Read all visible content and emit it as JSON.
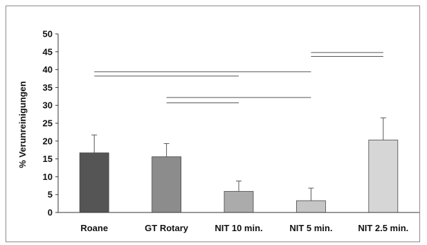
{
  "chart_data": {
    "type": "bar",
    "title": "",
    "xlabel": "",
    "ylabel": "% Verunreinigungen",
    "ylim": [
      0,
      50
    ],
    "yticks": [
      0,
      5,
      10,
      15,
      20,
      25,
      30,
      35,
      40,
      45,
      50
    ],
    "grid": false,
    "legend": "none",
    "categories": [
      "Roane",
      "GT Rotary",
      "NIT 10 min.",
      "NIT 5 min.",
      "NIT 2.5 min."
    ],
    "values": [
      16.7,
      15.6,
      5.9,
      3.3,
      20.3
    ],
    "error_plus": [
      5.0,
      3.7,
      2.9,
      3.5,
      6.2
    ],
    "bar_colors": [
      "#555555",
      "#8c8c8c",
      "#ababab",
      "#c6c6c6",
      "#d6d6d6"
    ],
    "significance_lines": [
      {
        "from": "NIT 5 min.",
        "to": "NIT 2.5 min.",
        "y": 44.8
      },
      {
        "from": "NIT 5 min.",
        "to": "NIT 2.5 min.",
        "y": 43.7
      },
      {
        "from": "Roane",
        "to": "NIT 5 min.",
        "y": 39.4
      },
      {
        "from": "Roane",
        "to": "NIT 10 min.",
        "y": 38.2
      },
      {
        "from": "GT Rotary",
        "to": "NIT 5 min.",
        "y": 32.2
      },
      {
        "from": "GT Rotary",
        "to": "NIT 10 min.",
        "y": 30.7
      }
    ]
  }
}
